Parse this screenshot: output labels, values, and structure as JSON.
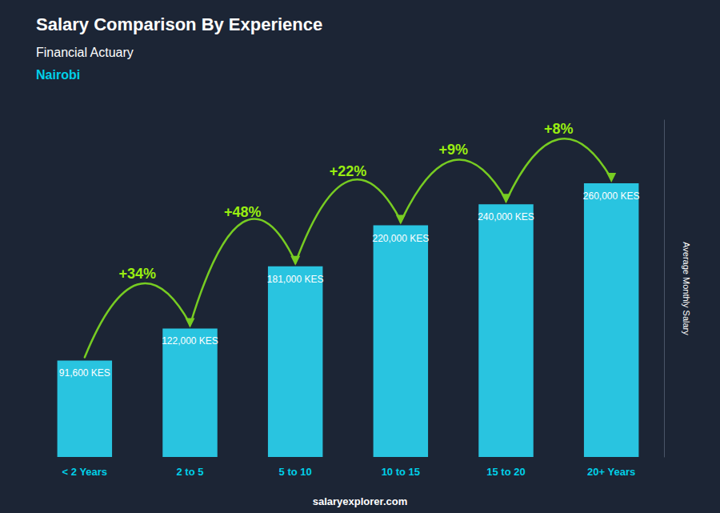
{
  "chart_data": {
    "type": "bar",
    "title": "Salary Comparison By Experience",
    "subtitle": [
      "Financial Actuary",
      "Nairobi"
    ],
    "categories": [
      "< 2 Years",
      "2 to 5",
      "5 to 10",
      "10 to 15",
      "15 to 20",
      "20+ Years"
    ],
    "values": [
      91600,
      122000,
      181000,
      220000,
      240000,
      260000
    ],
    "value_labels": [
      "91,600 KES",
      "122,000 KES",
      "181,000 KES",
      "220,000 KES",
      "240,000 KES",
      "260,000 KES"
    ],
    "data_labels": true,
    "color": "#29C4E0",
    "ylabel": "Average Monthly Salary",
    "ylim": [
      0,
      320000
    ],
    "tick_labels": "x",
    "grid": false,
    "annotations": [
      {
        "text": "+34%",
        "from": "< 2 Years",
        "to": "2 to 5"
      },
      {
        "text": "+48%",
        "from": "2 to 5",
        "to": "5 to 10"
      },
      {
        "text": "+22%",
        "from": "5 to 10",
        "to": "10 to 15"
      },
      {
        "text": "+9%",
        "from": "10 to 15",
        "to": "15 to 20"
      },
      {
        "text": "+8%",
        "from": "15 to 20",
        "to": "20+ Years"
      },
      {
        "text": "salaryexplorer.com"
      }
    ]
  }
}
